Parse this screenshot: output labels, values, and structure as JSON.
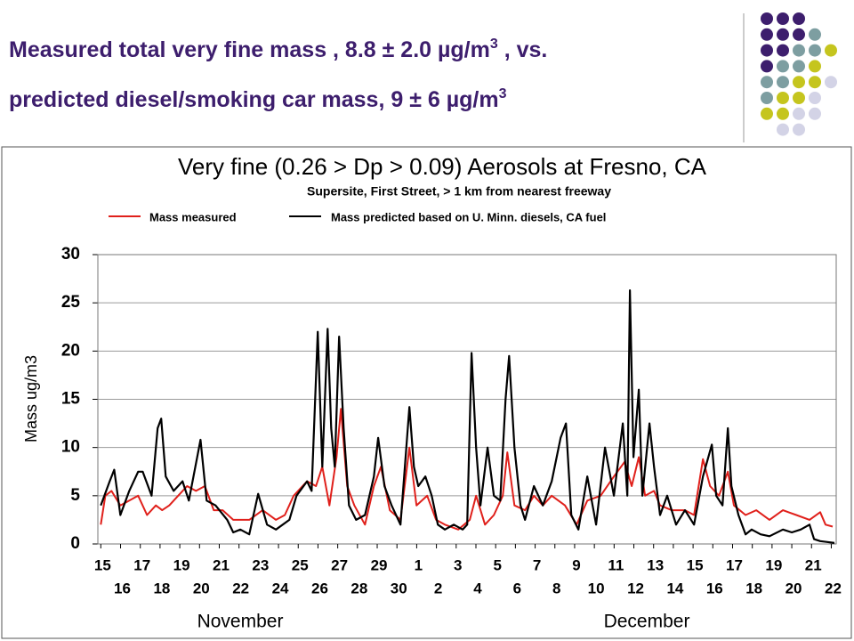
{
  "slide": {
    "title_lines": [
      {
        "text": "Measured total very fine mass , 8.8 ± 2.0 µg/m",
        "sup": "3",
        "tail": " , vs."
      },
      {
        "text": "predicted  diesel/smoking car mass, 9 ± 6 µg/m",
        "sup": "3"
      }
    ]
  },
  "chart_data": {
    "type": "line",
    "title": "Very fine (0.26 > Dp > 0.09) Aerosols at Fresno, CA",
    "subtitle": "Supersite, First Street, > 1 km from nearest freeway",
    "ylabel": "Mass ug/m3",
    "annotations": [
      "November",
      "December"
    ],
    "xlim": [
      -0.15,
      37.25
    ],
    "xticks": [
      {
        "value": 0,
        "label": "15"
      },
      {
        "value": 1,
        "label": "16"
      },
      {
        "value": 2,
        "label": "17"
      },
      {
        "value": 3,
        "label": "18"
      },
      {
        "value": 4,
        "label": "19"
      },
      {
        "value": 5,
        "label": "20"
      },
      {
        "value": 6,
        "label": "21"
      },
      {
        "value": 7,
        "label": "22"
      },
      {
        "value": 8,
        "label": "23"
      },
      {
        "value": 9,
        "label": "24"
      },
      {
        "value": 10,
        "label": "25"
      },
      {
        "value": 11,
        "label": "26"
      },
      {
        "value": 12,
        "label": "27"
      },
      {
        "value": 13,
        "label": "28"
      },
      {
        "value": 14,
        "label": "29"
      },
      {
        "value": 15,
        "label": "30"
      },
      {
        "value": 16,
        "label": "1"
      },
      {
        "value": 17,
        "label": "2"
      },
      {
        "value": 18,
        "label": "3"
      },
      {
        "value": 19,
        "label": "4"
      },
      {
        "value": 20,
        "label": "5"
      },
      {
        "value": 21,
        "label": "6"
      },
      {
        "value": 22,
        "label": "7"
      },
      {
        "value": 23,
        "label": "8"
      },
      {
        "value": 24,
        "label": "9"
      },
      {
        "value": 25,
        "label": "10"
      },
      {
        "value": 26,
        "label": "11"
      },
      {
        "value": 27,
        "label": "12"
      },
      {
        "value": 28,
        "label": "13"
      },
      {
        "value": 29,
        "label": "14"
      },
      {
        "value": 30,
        "label": "15"
      },
      {
        "value": 31,
        "label": "16"
      },
      {
        "value": 32,
        "label": "17"
      },
      {
        "value": 33,
        "label": "18"
      },
      {
        "value": 34,
        "label": "19"
      },
      {
        "value": 35,
        "label": "20"
      },
      {
        "value": 36,
        "label": "21"
      },
      {
        "value": 37,
        "label": "22"
      }
    ],
    "ylim": [
      0,
      30
    ],
    "yticks": [
      0,
      5,
      10,
      15,
      20,
      25,
      30
    ],
    "grid": true,
    "series": [
      {
        "name": "Mass measured",
        "color": "#e0201b",
        "x": [
          0,
          0.23,
          0.54,
          0.99,
          1.44,
          1.89,
          2.34,
          2.79,
          3.11,
          3.47,
          3.92,
          4.37,
          4.82,
          5.27,
          5.72,
          6.17,
          6.71,
          7.52,
          8.2,
          8.87,
          9.32,
          9.77,
          10.45,
          10.9,
          11.22,
          11.58,
          11.94,
          12.16,
          12.48,
          12.84,
          13.38,
          13.83,
          14.19,
          14.64,
          15.18,
          15.63,
          15.99,
          16.53,
          16.98,
          17.43,
          18.11,
          18.69,
          19.01,
          19.46,
          19.91,
          20.36,
          20.59,
          20.95,
          21.49,
          21.94,
          22.39,
          22.84,
          23.51,
          24.1,
          24.64,
          25.32,
          25.99,
          26.53,
          26.89,
          27.25,
          27.57,
          28.02,
          28.33,
          28.92,
          29.59,
          30.05,
          30.5,
          30.86,
          31.31,
          31.76,
          32.07,
          32.66,
          33.2,
          33.87,
          34.55,
          35.23,
          35.9,
          36.44,
          36.71,
          37.07
        ],
        "values": [
          2,
          5,
          5.5,
          4,
          4.5,
          5,
          3,
          4,
          3.5,
          4,
          5,
          6,
          5.5,
          6,
          3.5,
          3.5,
          2.5,
          2.5,
          3.5,
          2.5,
          3,
          5,
          6.5,
          6,
          8,
          4,
          9,
          14,
          6,
          4,
          2,
          6,
          8,
          3.5,
          2.5,
          10,
          4,
          5,
          2.5,
          2,
          1.5,
          2.5,
          5,
          2,
          3,
          5,
          9.5,
          4,
          3.5,
          5,
          4,
          5,
          4,
          2,
          4.5,
          5,
          7,
          8.5,
          6,
          9,
          5,
          5.5,
          4,
          3.5,
          3.5,
          3,
          8.8,
          6,
          5,
          7.5,
          4,
          3,
          3.5,
          2.5,
          3.5,
          3,
          2.5,
          3.3,
          2,
          1.8
        ]
      },
      {
        "name": "Mass predicted based on U. Minn. diesels, CA fuel",
        "color": "#000000",
        "x": [
          0,
          0.45,
          0.68,
          0.99,
          1.44,
          1.89,
          2.12,
          2.57,
          2.88,
          3.06,
          3.29,
          3.69,
          4.14,
          4.46,
          5.05,
          5.36,
          5.81,
          6.4,
          6.71,
          7.07,
          7.52,
          7.97,
          8.42,
          8.87,
          9.55,
          9.91,
          10.45,
          10.68,
          10.99,
          11.22,
          11.49,
          11.67,
          11.85,
          12.07,
          12.3,
          12.57,
          12.93,
          13.38,
          13.83,
          14.05,
          14.37,
          14.73,
          15.18,
          15.63,
          15.86,
          16.08,
          16.44,
          16.76,
          17.07,
          17.43,
          17.88,
          18.33,
          18.56,
          18.78,
          19.01,
          19.23,
          19.59,
          19.91,
          20.23,
          20.5,
          20.68,
          20.95,
          21.26,
          21.49,
          21.94,
          22.39,
          22.84,
          23.29,
          23.56,
          23.83,
          24.19,
          24.64,
          25.09,
          25.54,
          25.99,
          26.44,
          26.67,
          26.8,
          26.98,
          27.25,
          27.43,
          27.79,
          28.02,
          28.33,
          28.69,
          29.14,
          29.59,
          30.05,
          30.5,
          30.95,
          31.17,
          31.49,
          31.76,
          31.94,
          32.3,
          32.66,
          32.97,
          33.42,
          33.87,
          34.55,
          35,
          35.45,
          35.9,
          36.13,
          36.44,
          36.8,
          37.16
        ],
        "values": [
          4,
          6.5,
          7.7,
          3,
          5.5,
          7.5,
          7.5,
          5,
          12,
          13,
          7,
          5.5,
          6.5,
          4.5,
          10.8,
          4.5,
          4,
          2.5,
          1.2,
          1.5,
          1,
          5.2,
          2,
          1.5,
          2.5,
          5,
          6.5,
          5.5,
          22,
          8,
          22.3,
          12,
          8,
          21.5,
          12,
          4,
          2.5,
          3,
          7,
          11,
          6,
          4,
          2,
          14.2,
          8,
          6,
          7,
          5,
          2,
          1.5,
          2,
          1.5,
          2,
          19.8,
          10,
          4,
          10,
          5,
          4.5,
          15,
          19.5,
          10,
          4,
          2.5,
          6,
          4,
          6.5,
          11,
          12.5,
          3,
          1.5,
          7,
          2,
          10,
          5,
          12.5,
          5,
          26.3,
          9,
          16,
          5,
          12.5,
          8,
          3,
          5,
          2,
          3.5,
          2,
          7,
          10.3,
          5,
          4,
          12,
          6,
          3,
          1,
          1.5,
          1,
          0.8,
          1.5,
          1.2,
          1.5,
          2,
          0.5,
          0.3,
          0.2,
          0.1
        ]
      }
    ]
  }
}
